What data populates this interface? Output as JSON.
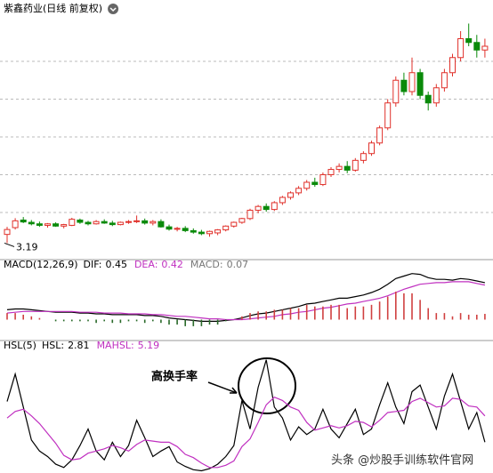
{
  "chart_data": [
    {
      "type": "candlestick",
      "title": "紫鑫药业(日线 前复权)",
      "up_color": "#e0302a",
      "down_color": "#0a8a0a",
      "ylim": [
        2.8,
        9.2
      ],
      "yticks": [
        4,
        5,
        6,
        7,
        8
      ],
      "grid": true,
      "open": [
        3.42,
        3.6,
        3.8,
        3.74,
        3.7,
        3.66,
        3.7,
        3.64,
        3.66,
        3.8,
        3.74,
        3.7,
        3.76,
        3.72,
        3.68,
        3.74,
        3.76,
        3.78,
        3.72,
        3.76,
        3.62,
        3.56,
        3.58,
        3.52,
        3.48,
        3.44,
        3.46,
        3.54,
        3.64,
        3.74,
        3.84,
        4.06,
        4.16,
        4.08,
        4.26,
        4.4,
        4.52,
        4.64,
        4.8,
        4.74,
        5.0,
        5.14,
        5.22,
        5.12,
        5.38,
        5.56,
        5.84,
        6.24,
        6.9,
        7.5,
        7.2,
        7.7,
        7.1,
        6.9,
        7.3,
        7.7,
        8.1,
        8.6,
        8.5,
        8.3
      ],
      "high": [
        3.62,
        3.85,
        3.88,
        3.8,
        3.76,
        3.72,
        3.74,
        3.7,
        3.86,
        3.84,
        3.78,
        3.8,
        3.82,
        3.78,
        3.76,
        3.8,
        3.92,
        3.84,
        3.8,
        3.82,
        3.68,
        3.62,
        3.64,
        3.58,
        3.54,
        3.52,
        3.56,
        3.66,
        3.76,
        3.86,
        4.1,
        4.2,
        4.24,
        4.3,
        4.44,
        4.56,
        4.7,
        4.86,
        4.92,
        5.06,
        5.2,
        5.3,
        5.36,
        5.44,
        5.62,
        5.9,
        6.3,
        7.0,
        7.6,
        7.7,
        8.1,
        7.8,
        7.2,
        7.4,
        7.8,
        8.2,
        8.8,
        9.0,
        8.7,
        8.6
      ],
      "low": [
        3.19,
        3.55,
        3.72,
        3.66,
        3.62,
        3.6,
        3.62,
        3.58,
        3.64,
        3.7,
        3.66,
        3.68,
        3.7,
        3.64,
        3.66,
        3.7,
        3.72,
        3.68,
        3.66,
        3.6,
        3.52,
        3.5,
        3.48,
        3.44,
        3.4,
        3.36,
        3.4,
        3.5,
        3.6,
        3.7,
        3.8,
        3.98,
        4.02,
        4.04,
        4.2,
        4.34,
        4.46,
        4.58,
        4.68,
        4.7,
        4.94,
        5.06,
        5.04,
        5.08,
        5.3,
        5.5,
        5.78,
        6.18,
        6.8,
        7.1,
        7.1,
        7.0,
        6.7,
        6.8,
        7.2,
        7.6,
        8.0,
        8.4,
        8.1,
        8.1
      ],
      "close": [
        3.55,
        3.78,
        3.75,
        3.7,
        3.66,
        3.7,
        3.64,
        3.68,
        3.82,
        3.74,
        3.7,
        3.76,
        3.72,
        3.68,
        3.74,
        3.76,
        3.78,
        3.72,
        3.76,
        3.62,
        3.56,
        3.58,
        3.52,
        3.48,
        3.44,
        3.5,
        3.54,
        3.64,
        3.74,
        3.84,
        4.06,
        4.16,
        4.08,
        4.26,
        4.4,
        4.52,
        4.64,
        4.8,
        4.74,
        5.0,
        5.14,
        5.22,
        5.12,
        5.38,
        5.56,
        5.84,
        6.24,
        6.9,
        7.5,
        7.2,
        7.7,
        7.1,
        6.9,
        7.3,
        7.7,
        8.1,
        8.6,
        8.5,
        8.3,
        8.4
      ]
    },
    {
      "type": "line",
      "title": "MACD(12,26,9)",
      "ylim": [
        -0.2,
        0.6
      ],
      "series": [
        {
          "name": "DIF:",
          "color": "#000000",
          "values": [
            0.12,
            0.13,
            0.13,
            0.12,
            0.11,
            0.1,
            0.09,
            0.09,
            0.09,
            0.08,
            0.08,
            0.07,
            0.07,
            0.06,
            0.06,
            0.06,
            0.06,
            0.05,
            0.05,
            0.04,
            0.02,
            0.01,
            0.0,
            -0.01,
            -0.02,
            -0.02,
            -0.02,
            -0.01,
            0.0,
            0.02,
            0.05,
            0.07,
            0.08,
            0.1,
            0.12,
            0.14,
            0.16,
            0.19,
            0.2,
            0.22,
            0.24,
            0.26,
            0.26,
            0.28,
            0.3,
            0.33,
            0.37,
            0.43,
            0.5,
            0.53,
            0.56,
            0.55,
            0.51,
            0.49,
            0.49,
            0.48,
            0.5,
            0.49,
            0.47,
            0.45
          ]
        },
        {
          "name": "DEA:",
          "color": "#c030c0",
          "values": [
            0.08,
            0.09,
            0.1,
            0.1,
            0.1,
            0.1,
            0.1,
            0.1,
            0.1,
            0.09,
            0.09,
            0.09,
            0.08,
            0.08,
            0.08,
            0.07,
            0.07,
            0.07,
            0.06,
            0.06,
            0.05,
            0.04,
            0.04,
            0.03,
            0.02,
            0.01,
            0.01,
            0.0,
            0.0,
            0.0,
            0.01,
            0.02,
            0.03,
            0.04,
            0.06,
            0.07,
            0.09,
            0.1,
            0.12,
            0.14,
            0.15,
            0.17,
            0.19,
            0.2,
            0.22,
            0.24,
            0.26,
            0.29,
            0.33,
            0.37,
            0.4,
            0.43,
            0.44,
            0.45,
            0.45,
            0.46,
            0.46,
            0.46,
            0.44,
            0.42
          ]
        },
        {
          "name": "MACD:",
          "type": "bar",
          "color": "#d04040",
          "neg_color": "#2a6a2a",
          "values": [
            0.08,
            0.08,
            0.06,
            0.04,
            0.02,
            0.0,
            -0.02,
            -0.02,
            -0.02,
            -0.02,
            -0.02,
            -0.04,
            -0.02,
            -0.04,
            -0.04,
            -0.02,
            -0.02,
            -0.04,
            -0.02,
            -0.04,
            -0.06,
            -0.06,
            -0.08,
            -0.08,
            -0.08,
            -0.06,
            -0.06,
            -0.02,
            0.0,
            0.04,
            0.08,
            0.1,
            0.1,
            0.12,
            0.12,
            0.14,
            0.14,
            0.18,
            0.16,
            0.16,
            0.18,
            0.18,
            0.14,
            0.16,
            0.16,
            0.18,
            0.22,
            0.28,
            0.34,
            0.32,
            0.32,
            0.24,
            0.14,
            0.08,
            0.08,
            0.04,
            0.08,
            0.06,
            0.06,
            0.07
          ]
        }
      ]
    },
    {
      "type": "line",
      "title": "HSL(5)",
      "ylim": [
        0,
        11
      ],
      "series": [
        {
          "name": "HSL:",
          "color": "#000000",
          "values": [
            6.5,
            9.0,
            6.0,
            3.0,
            2.0,
            1.5,
            0.8,
            0.5,
            1.2,
            2.5,
            4.0,
            2.0,
            1.2,
            2.8,
            1.5,
            2.5,
            4.8,
            3.2,
            1.5,
            2.0,
            2.4,
            1.0,
            0.6,
            0.3,
            0.2,
            0.4,
            0.8,
            1.5,
            2.5,
            6.6,
            4.0,
            7.8,
            10.3,
            6.0,
            5.0,
            3.0,
            4.2,
            3.5,
            4.0,
            5.8,
            4.0,
            3.2,
            4.5,
            5.8,
            3.5,
            4.0,
            6.2,
            8.2,
            6.0,
            4.5,
            7.4,
            8.0,
            6.0,
            4.0,
            7.0,
            9.0,
            6.5,
            4.0,
            5.5,
            2.81
          ]
        },
        {
          "name": "MAHSL:",
          "color": "#c030c0",
          "values": [
            5.0,
            5.6,
            5.8,
            5.2,
            4.5,
            3.6,
            2.7,
            1.6,
            1.2,
            1.3,
            1.8,
            2.0,
            2.2,
            2.5,
            2.3,
            2.0,
            2.6,
            3.0,
            2.9,
            2.8,
            2.8,
            2.4,
            1.7,
            1.4,
            0.9,
            0.5,
            0.5,
            0.7,
            1.1,
            2.4,
            3.1,
            4.6,
            6.2,
            6.9,
            6.6,
            6.0,
            5.7,
            4.6,
            3.9,
            4.1,
            4.3,
            4.1,
            4.3,
            4.7,
            4.6,
            4.2,
            4.8,
            5.5,
            5.6,
            5.7,
            6.5,
            6.8,
            6.4,
            6.0,
            6.1,
            6.8,
            6.7,
            6.1,
            6.0,
            5.19
          ]
        }
      ],
      "annotation": "高换手率"
    }
  ],
  "watermark": "头条 @炒股手训练软件官网"
}
